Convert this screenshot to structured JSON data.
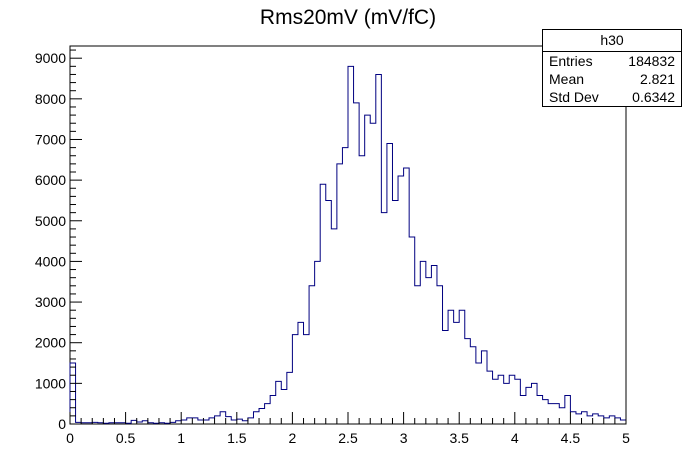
{
  "chart_data": {
    "type": "bar",
    "title": "Rms20mV (mV/fC)",
    "xlabel": "",
    "ylabel": "",
    "xlim": [
      0,
      5
    ],
    "ylim": [
      0,
      9300
    ],
    "bin_width": 0.05,
    "x_ticks": [
      "0",
      "0.5",
      "1",
      "1.5",
      "2",
      "2.5",
      "3",
      "3.5",
      "4",
      "4.5",
      "5"
    ],
    "y_ticks": [
      "0",
      "1000",
      "2000",
      "3000",
      "4000",
      "5000",
      "6000",
      "7000",
      "8000",
      "9000"
    ],
    "line_color": "#000080",
    "stats": {
      "name": "h30",
      "rows": [
        {
          "label": "Entries",
          "value": "184832"
        },
        {
          "label": "Mean",
          "value": "2.821"
        },
        {
          "label": "Std Dev",
          "value": "0.6342"
        }
      ]
    },
    "values": [
      1500,
      40,
      30,
      30,
      40,
      30,
      20,
      30,
      30,
      30,
      20,
      90,
      50,
      80,
      30,
      20,
      30,
      20,
      40,
      80,
      100,
      150,
      150,
      100,
      100,
      150,
      200,
      300,
      180,
      100,
      120,
      80,
      150,
      300,
      380,
      500,
      700,
      1050,
      850,
      1270,
      2200,
      2500,
      2200,
      3400,
      4000,
      5900,
      5500,
      4800,
      6400,
      6800,
      8800,
      7900,
      6600,
      7600,
      7400,
      8600,
      5200,
      6900,
      5500,
      6100,
      6300,
      4600,
      3400,
      4000,
      3600,
      3900,
      3400,
      2300,
      2800,
      2500,
      2800,
      2100,
      1900,
      1500,
      1800,
      1300,
      1100,
      1200,
      1000,
      1200,
      1100,
      700,
      900,
      1000,
      700,
      600,
      500,
      500,
      400,
      700,
      300,
      250,
      300,
      200,
      250,
      200,
      150,
      200,
      150,
      100
    ]
  }
}
